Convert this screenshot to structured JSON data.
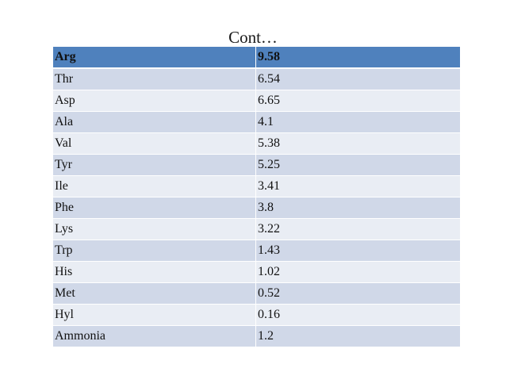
{
  "title": "Cont…",
  "table": {
    "header": {
      "name": "Arg",
      "value": "9.58"
    },
    "rows": [
      {
        "name": "Thr",
        "value": "6.54"
      },
      {
        "name": "Asp",
        "value": "6.65"
      },
      {
        "name": "Ala",
        "value": "4.1"
      },
      {
        "name": "Val",
        "value": "5.38"
      },
      {
        "name": "Tyr",
        "value": "5.25"
      },
      {
        "name": "Ile",
        "value": "3.41"
      },
      {
        "name": "Phe",
        "value": "3.8"
      },
      {
        "name": "Lys",
        "value": "3.22"
      },
      {
        "name": "Trp",
        "value": "1.43"
      },
      {
        "name": "His",
        "value": "1.02"
      },
      {
        "name": "Met",
        "value": "0.52"
      },
      {
        "name": "Hyl",
        "value": "0.16"
      },
      {
        "name": "Ammonia",
        "value": "1.2"
      }
    ]
  },
  "colors": {
    "header_fill": "#4f81bd",
    "band_dark": "#d0d8e8",
    "band_light": "#e9edf4"
  }
}
